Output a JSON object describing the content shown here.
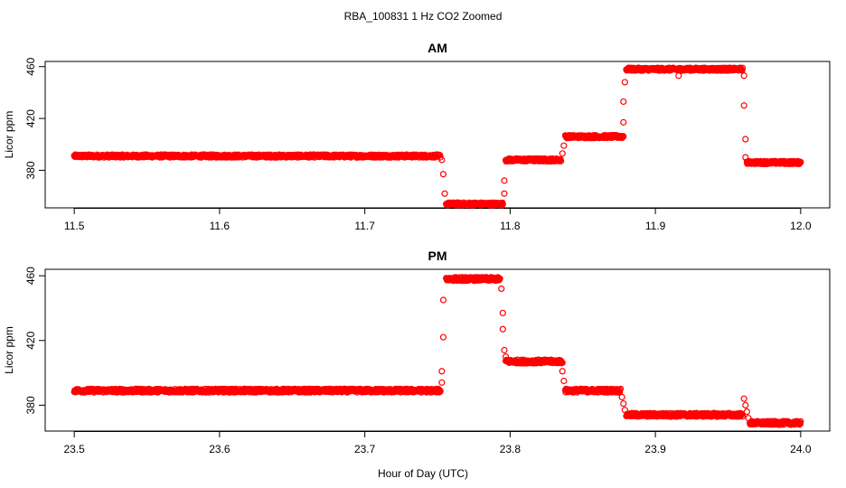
{
  "figure": {
    "title": "RBA_100831  1 Hz CO2 Zoomed",
    "xlabel": "Hour of Day (UTC)",
    "point_color": "#ff0000"
  },
  "chart_data": [
    {
      "type": "scatter",
      "title": "AM",
      "xlabel": "Hour of Day (UTC)",
      "ylabel": "Licor ppm",
      "xlim": [
        11.48,
        12.02
      ],
      "ylim": [
        351,
        464
      ],
      "xticks": [
        "11.5",
        "11.6",
        "11.7",
        "11.8",
        "11.9",
        "12.0"
      ],
      "xtick_values": [
        11.5,
        11.6,
        11.7,
        11.8,
        11.9,
        12.0
      ],
      "yticks": [
        "380",
        "420",
        "460"
      ],
      "ytick_values": [
        380,
        420,
        460
      ],
      "grid": false,
      "segments": [
        {
          "x_start": 11.5,
          "x_end": 11.752,
          "y": 391
        },
        {
          "x_start": 11.756,
          "x_end": 11.795,
          "y": 354
        },
        {
          "x_start": 11.797,
          "x_end": 11.835,
          "y": 388
        },
        {
          "x_start": 11.838,
          "x_end": 11.878,
          "y": 406
        },
        {
          "x_start": 11.88,
          "x_end": 11.96,
          "y": 458
        },
        {
          "x_start": 11.963,
          "x_end": 12.0,
          "y": 386
        }
      ],
      "transition_points": [
        {
          "x": 11.753,
          "y": 388
        },
        {
          "x": 11.754,
          "y": 377
        },
        {
          "x": 11.755,
          "y": 362
        },
        {
          "x": 11.796,
          "y": 362
        },
        {
          "x": 11.796,
          "y": 372
        },
        {
          "x": 11.836,
          "y": 393
        },
        {
          "x": 11.837,
          "y": 399
        },
        {
          "x": 11.878,
          "y": 417
        },
        {
          "x": 11.878,
          "y": 433
        },
        {
          "x": 11.879,
          "y": 448
        },
        {
          "x": 11.916,
          "y": 453
        },
        {
          "x": 11.961,
          "y": 453
        },
        {
          "x": 11.961,
          "y": 430
        },
        {
          "x": 11.962,
          "y": 404
        },
        {
          "x": 11.962,
          "y": 390
        }
      ]
    },
    {
      "type": "scatter",
      "title": "PM",
      "xlabel": "Hour of Day (UTC)",
      "ylabel": "Licor ppm",
      "xlim": [
        23.48,
        24.02
      ],
      "ylim": [
        364,
        464
      ],
      "xticks": [
        "23.5",
        "23.6",
        "23.7",
        "23.8",
        "23.9",
        "24.0"
      ],
      "xtick_values": [
        23.5,
        23.6,
        23.7,
        23.8,
        23.9,
        24.0
      ],
      "yticks": [
        "380",
        "420",
        "460"
      ],
      "ytick_values": [
        380,
        420,
        460
      ],
      "grid": false,
      "segments": [
        {
          "x_start": 23.5,
          "x_end": 23.752,
          "y": 389
        },
        {
          "x_start": 23.756,
          "x_end": 23.793,
          "y": 458
        },
        {
          "x_start": 23.797,
          "x_end": 23.836,
          "y": 407
        },
        {
          "x_start": 23.838,
          "x_end": 23.876,
          "y": 389
        },
        {
          "x_start": 23.88,
          "x_end": 23.96,
          "y": 374
        },
        {
          "x_start": 23.965,
          "x_end": 24.0,
          "y": 369
        }
      ],
      "transition_points": [
        {
          "x": 23.753,
          "y": 394
        },
        {
          "x": 23.753,
          "y": 401
        },
        {
          "x": 23.754,
          "y": 422
        },
        {
          "x": 23.754,
          "y": 445
        },
        {
          "x": 23.794,
          "y": 452
        },
        {
          "x": 23.795,
          "y": 437
        },
        {
          "x": 23.795,
          "y": 427
        },
        {
          "x": 23.796,
          "y": 414
        },
        {
          "x": 23.797,
          "y": 410
        },
        {
          "x": 23.836,
          "y": 401
        },
        {
          "x": 23.837,
          "y": 395
        },
        {
          "x": 23.877,
          "y": 385
        },
        {
          "x": 23.878,
          "y": 381
        },
        {
          "x": 23.879,
          "y": 377
        },
        {
          "x": 23.961,
          "y": 384
        },
        {
          "x": 23.962,
          "y": 380
        },
        {
          "x": 23.963,
          "y": 376
        },
        {
          "x": 23.964,
          "y": 372
        }
      ]
    }
  ]
}
